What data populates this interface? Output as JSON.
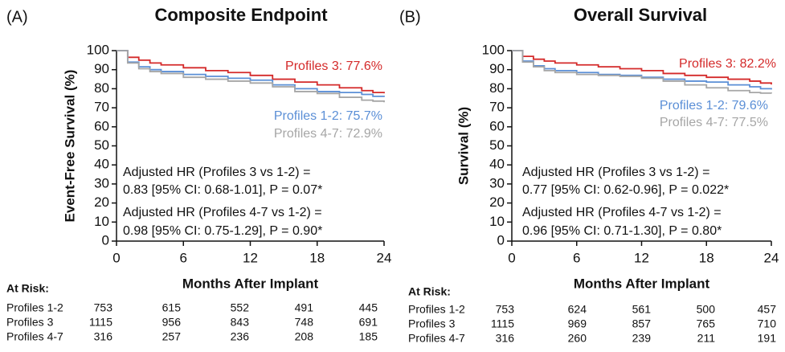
{
  "chart_data": [
    {
      "type": "line",
      "panel": "(A)",
      "title": "Composite Endpoint",
      "x_label": "Months After Implant",
      "y_label": "Event-Free Survival (%)",
      "x": [
        0,
        1,
        2,
        3,
        4,
        6,
        8,
        10,
        12,
        14,
        16,
        18,
        20,
        22,
        23,
        24
      ],
      "series": [
        {
          "label": "Profiles 3: 77.6%",
          "color": "#d42a2a",
          "values": [
            100,
            96.5,
            95,
            93.5,
            92.5,
            91,
            89.5,
            88.5,
            87,
            85,
            83.5,
            82,
            80.5,
            79,
            78,
            77.6
          ]
        },
        {
          "label": "Profiles 1-2: 75.7%",
          "color": "#5b8fd6",
          "values": [
            100,
            94,
            91.5,
            90,
            89,
            87.5,
            86.5,
            85.5,
            84.5,
            82,
            80,
            78.5,
            78,
            77,
            76,
            75.7
          ]
        },
        {
          "label": "Profiles 4-7: 72.9%",
          "color": "#a6a6a6",
          "values": [
            100,
            93.5,
            90.5,
            89,
            88,
            86,
            85,
            84,
            83,
            81,
            78.5,
            77.5,
            75.5,
            74,
            73.5,
            72.9
          ]
        }
      ],
      "xlim": [
        0,
        24
      ],
      "xticks": [
        0,
        6,
        12,
        18,
        24
      ],
      "ylim": [
        0,
        100
      ],
      "yticks": [
        0,
        10,
        20,
        30,
        40,
        50,
        60,
        70,
        80,
        90,
        100
      ],
      "annotations": [
        "Adjusted HR (Profiles 3 vs 1-2) =",
        "0.83 [95% CI: 0.68-1.01], P = 0.07*",
        "Adjusted HR (Profiles 4-7 vs 1-2) =",
        "0.98 [95% CI: 0.75-1.29], P = 0.90*"
      ],
      "at_risk": {
        "title": "At Risk:",
        "rows": [
          {
            "name": "Profiles 1-2",
            "values": [
              753,
              615,
              552,
              491,
              445
            ]
          },
          {
            "name": "Profiles 3",
            "values": [
              1115,
              956,
              843,
              748,
              691
            ]
          },
          {
            "name": "Profiles 4-7",
            "values": [
              316,
              257,
              236,
              208,
              185
            ]
          }
        ]
      }
    },
    {
      "type": "line",
      "panel": "(B)",
      "title": "Overall Survival",
      "x_label": "Months After Implant",
      "y_label": "Survival (%)",
      "x": [
        0,
        1,
        2,
        3,
        4,
        6,
        8,
        10,
        12,
        14,
        16,
        18,
        20,
        22,
        23,
        24
      ],
      "series": [
        {
          "label": "Profiles 3: 82.2%",
          "color": "#d42a2a",
          "values": [
            100,
            97,
            95.5,
            94.5,
            93.5,
            92.5,
            91.5,
            90.5,
            89.5,
            88,
            87,
            86,
            85,
            84,
            83,
            82.2
          ]
        },
        {
          "label": "Profiles 1-2: 79.6%",
          "color": "#5b8fd6",
          "values": [
            100,
            94.5,
            92,
            90.5,
            89.5,
            88.5,
            87.5,
            87,
            86,
            85,
            84,
            83.5,
            82,
            81,
            80,
            79.6
          ]
        },
        {
          "label": "Profiles 4-7: 77.5%",
          "color": "#a6a6a6",
          "values": [
            100,
            94,
            91.5,
            89.5,
            88.5,
            87.5,
            87,
            86.5,
            85.5,
            84,
            82,
            80.5,
            79,
            78,
            77.7,
            77.5
          ]
        }
      ],
      "xlim": [
        0,
        24
      ],
      "xticks": [
        0,
        6,
        12,
        18,
        24
      ],
      "ylim": [
        0,
        100
      ],
      "yticks": [
        0,
        10,
        20,
        30,
        40,
        50,
        60,
        70,
        80,
        90,
        100
      ],
      "annotations": [
        "Adjusted HR (Profiles 3 vs 1-2) =",
        "0.77 [95% CI: 0.62-0.96], P = 0.022*",
        "Adjusted HR (Profiles 4-7 vs 1-2) =",
        "0.96 [95% CI: 0.71-1.30], P = 0.80*"
      ],
      "at_risk": {
        "title": "At Risk:",
        "rows": [
          {
            "name": "Profiles 1-2",
            "values": [
              753,
              624,
              561,
              500,
              457
            ]
          },
          {
            "name": "Profiles 3",
            "values": [
              1115,
              969,
              857,
              765,
              710
            ]
          },
          {
            "name": "Profiles 4-7",
            "values": [
              316,
              260,
              239,
              211,
              191
            ]
          }
        ]
      }
    }
  ]
}
